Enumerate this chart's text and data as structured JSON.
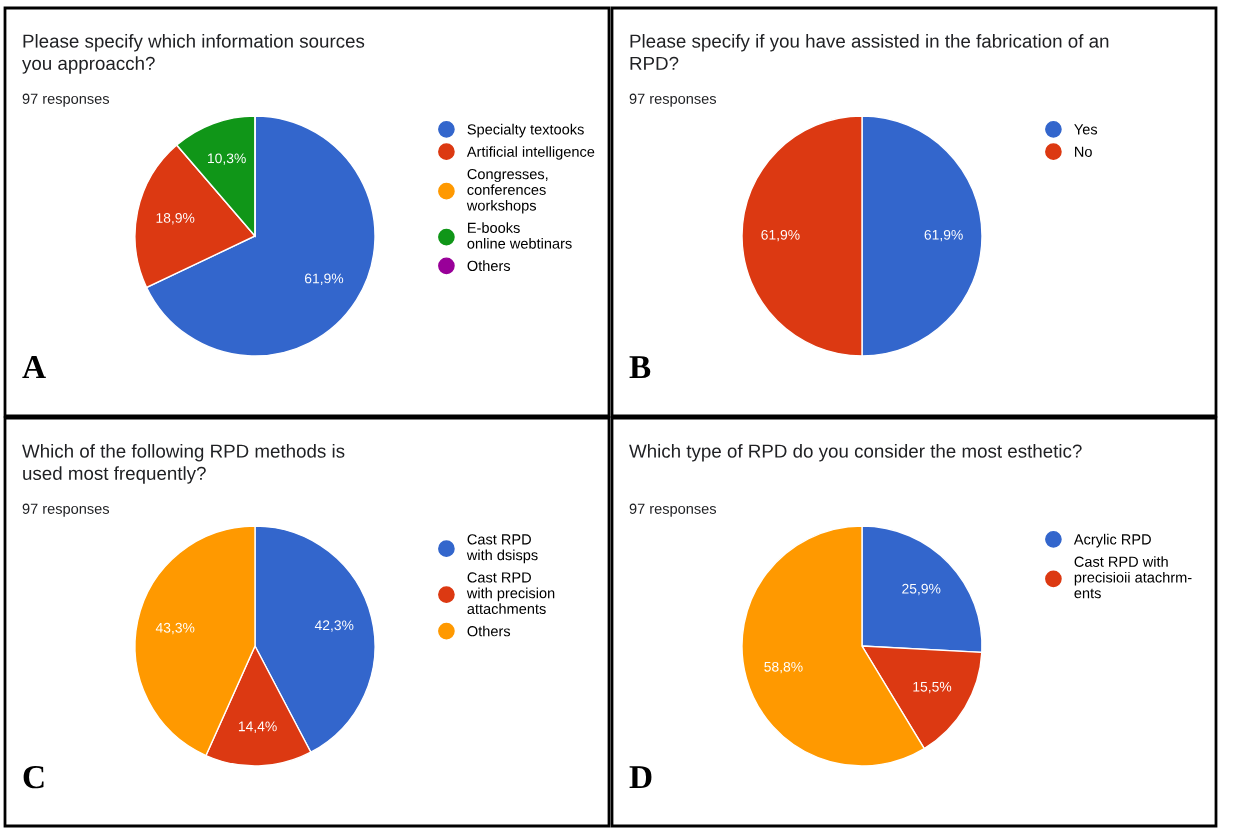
{
  "chart_data": [
    {
      "type": "pie",
      "title": "Please specify which information sources\nyou approacch?",
      "subtitle": "97 responses",
      "annotations": [
        "A"
      ],
      "legend": "right",
      "categories": [
        "Specialty textooks",
        "Artificial intelligence",
        "Congresses,\nconferences\nworkshops",
        "E-books\nonline webtinars",
        "Others"
      ],
      "values": [
        61.9,
        18.9,
        0,
        10.3,
        0
      ],
      "value_labels": [
        "61,9%",
        "18,9%",
        null,
        "10,3%",
        null
      ],
      "colors": [
        "#3366cc",
        "#dc3912",
        "#ff9900",
        "#109618",
        "#990099"
      ]
    },
    {
      "type": "pie",
      "title": "Please specify if you have assisted in the fabrication of an\nRPD?",
      "subtitle": "97 responses",
      "annotations": [
        "B"
      ],
      "legend": "right",
      "categories": [
        "Yes",
        "No"
      ],
      "values": [
        61.9,
        61.9
      ],
      "value_labels": [
        "61,9%",
        "61,9%"
      ],
      "colors": [
        "#3366cc",
        "#dc3912"
      ]
    },
    {
      "type": "pie",
      "title": "Which of the following RPD methods is\nused most frequently?",
      "subtitle": "97 responses",
      "annotations": [
        "C"
      ],
      "legend": "right",
      "categories": [
        "Cast RPD\nwith dsisps",
        "Cast RPD\nwith precision\nattachments",
        "Others"
      ],
      "values": [
        42.3,
        14.4,
        43.3
      ],
      "value_labels": [
        "42,3%",
        "14,4%",
        "43,3%"
      ],
      "colors": [
        "#3366cc",
        "#dc3912",
        "#ff9900"
      ]
    },
    {
      "type": "pie",
      "title": "Which type of RPD do you consider the most esthetic?",
      "subtitle": "97 responses",
      "annotations": [
        "D"
      ],
      "legend": "right",
      "categories": [
        "Acrylic RPD",
        "Cast RPD with\nprecisioii atachrm-\nents",
        null
      ],
      "values": [
        25.9,
        15.5,
        58.8
      ],
      "value_labels": [
        "25,9%",
        "15,5%",
        "58,8%"
      ],
      "colors": [
        "#3366cc",
        "#dc3912",
        "#ff9900"
      ]
    }
  ]
}
